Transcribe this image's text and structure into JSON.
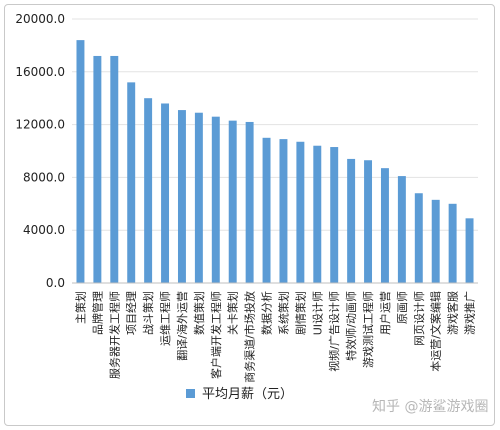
{
  "chart_data": {
    "type": "bar",
    "title": "",
    "xlabel": "",
    "ylabel": "",
    "ylim": [
      0,
      20000
    ],
    "yticks": [
      "0.0",
      "4000.0",
      "8000.0",
      "12000.0",
      "16000.0",
      "20000.0"
    ],
    "ytick_values": [
      0,
      4000,
      8000,
      12000,
      16000,
      20000
    ],
    "grid": true,
    "legend_position": "bottom",
    "categories": [
      "主策划",
      "品牌管理",
      "服务器开发工程师",
      "项目经理",
      "战斗策划",
      "运维工程师",
      "翻译/海外运营",
      "数值策划",
      "客户端开发工程师",
      "关卡策划",
      "商务渠道/市场投放",
      "数据分析",
      "系统策划",
      "剧情策划",
      "UI设计师",
      "视频/广告设计师",
      "特效师/动画师",
      "游戏测试工程师",
      "用户运营",
      "原画师",
      "网页设计师",
      "本运营/文案编辑",
      "游戏客服",
      "游戏推广"
    ],
    "series": [
      {
        "name": "平均月薪（元）",
        "color": "#5B9BD5",
        "values": [
          18400,
          17200,
          17200,
          15200,
          14000,
          13600,
          13100,
          12900,
          12600,
          12300,
          12200,
          11000,
          10900,
          10700,
          10400,
          10300,
          9400,
          9300,
          8700,
          8100,
          6800,
          6300,
          6000,
          4900
        ]
      }
    ]
  },
  "watermark": "知乎 @游鲨游戏圈"
}
